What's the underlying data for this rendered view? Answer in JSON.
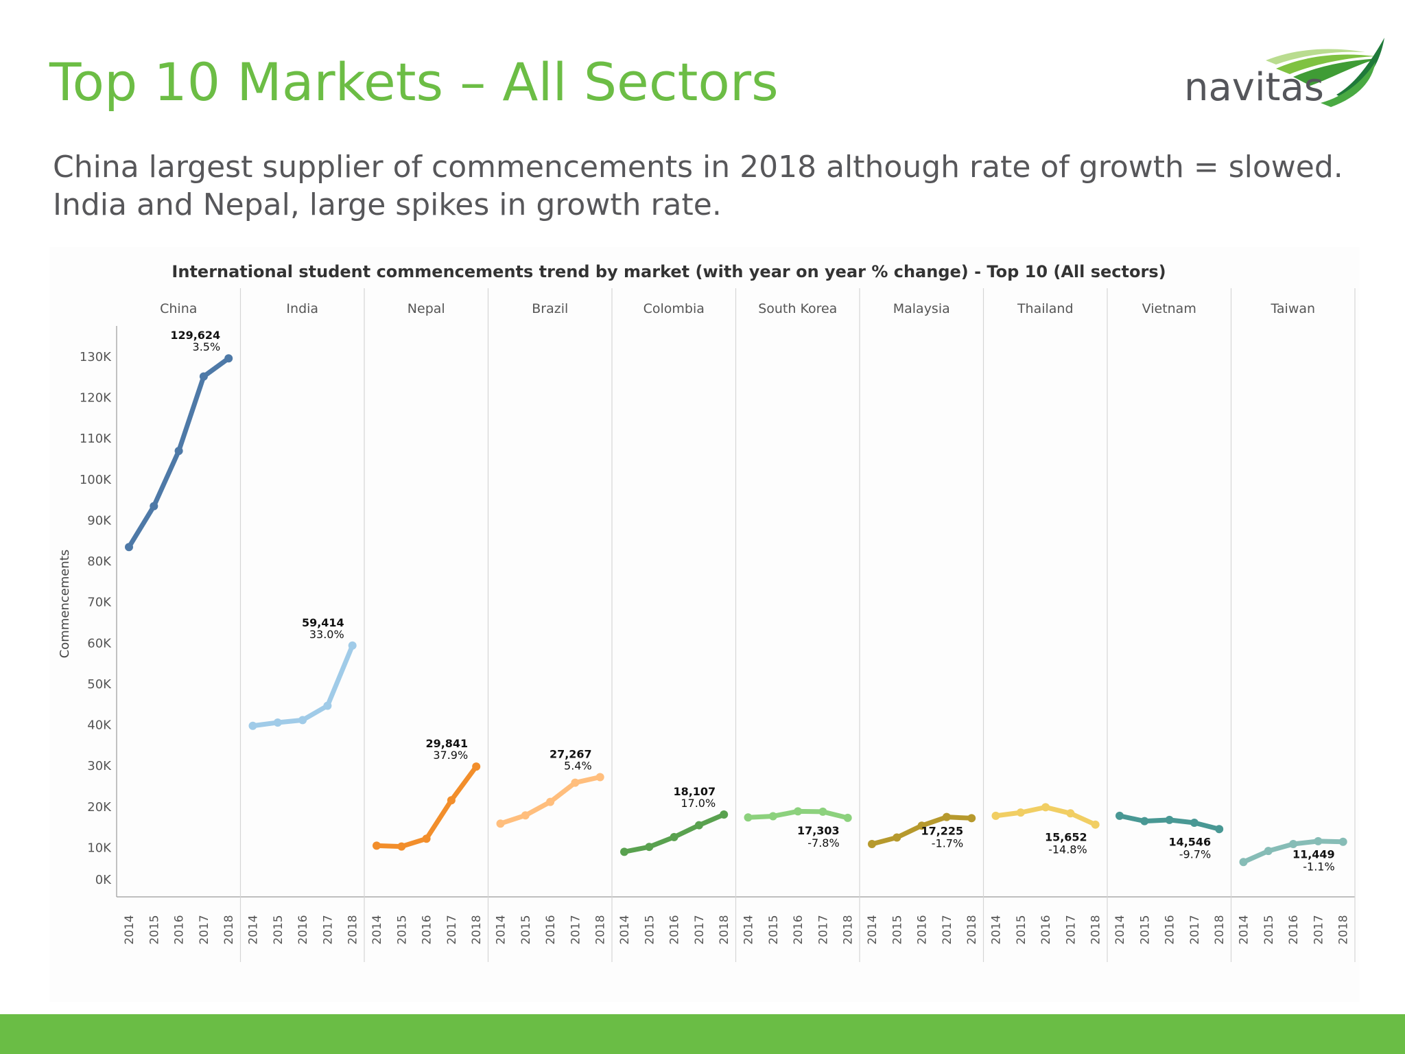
{
  "slide": {
    "title": "Top 10 Markets – All Sectors",
    "subtitle": "China largest supplier of commencements in 2018 although rate of growth = slowed. India and Nepal, large spikes in growth rate.",
    "logo_text": "navitas",
    "footer_color": "#6abd45",
    "title_color": "#6cbd45"
  },
  "chart_data": {
    "type": "line",
    "title": "International student commencements trend by market (with year on year % change) - Top 10 (All sectors)",
    "ylabel": "Commencements",
    "xlabel": "",
    "ylim": [
      0,
      135000
    ],
    "yticks": [
      0,
      10000,
      20000,
      30000,
      40000,
      50000,
      60000,
      70000,
      80000,
      90000,
      100000,
      110000,
      120000,
      130000
    ],
    "ytick_labels": [
      "0K",
      "10K",
      "20K",
      "30K",
      "40K",
      "50K",
      "60K",
      "70K",
      "80K",
      "90K",
      "100K",
      "110K",
      "120K",
      "130K"
    ],
    "x": [
      "2014",
      "2015",
      "2016",
      "2017",
      "2018"
    ],
    "grid": false,
    "series": [
      {
        "name": "China",
        "color": "#4e79a7",
        "values": [
          83500,
          93500,
          107000,
          125200,
          129624
        ],
        "last_value_label": "129,624",
        "change_label": "3.5%",
        "label_position": "above"
      },
      {
        "name": "India",
        "color": "#a0cbe8",
        "values": [
          39800,
          40600,
          41200,
          44700,
          59414
        ],
        "last_value_label": "59,414",
        "change_label": "33.0%",
        "label_position": "above"
      },
      {
        "name": "Nepal",
        "color": "#f28e2b",
        "values": [
          10500,
          10300,
          12200,
          21600,
          29841
        ],
        "last_value_label": "29,841",
        "change_label": "37.9%",
        "label_position": "above"
      },
      {
        "name": "Brazil",
        "color": "#ffbe7d",
        "values": [
          15900,
          17900,
          21200,
          25900,
          27267
        ],
        "last_value_label": "27,267",
        "change_label": "5.4%",
        "label_position": "above"
      },
      {
        "name": "Colombia",
        "color": "#59a14f",
        "values": [
          9000,
          10200,
          12600,
          15500,
          18107
        ],
        "last_value_label": "18,107",
        "change_label": "17.0%",
        "label_position": "above"
      },
      {
        "name": "South Korea",
        "color": "#8cd17d",
        "values": [
          17400,
          17700,
          18900,
          18800,
          17303
        ],
        "last_value_label": "17,303",
        "change_label": "-7.8%",
        "label_position": "below"
      },
      {
        "name": "Malaysia",
        "color": "#b6992d",
        "values": [
          10900,
          12500,
          15400,
          17500,
          17225
        ],
        "last_value_label": "17,225",
        "change_label": "-1.7%",
        "label_position": "below"
      },
      {
        "name": "Thailand",
        "color": "#f1ce63",
        "values": [
          17800,
          18600,
          19900,
          18400,
          15652
        ],
        "last_value_label": "15,652",
        "change_label": "-14.8%",
        "label_position": "below"
      },
      {
        "name": "Vietnam",
        "color": "#499894",
        "values": [
          17800,
          16500,
          16800,
          16100,
          14546
        ],
        "last_value_label": "14,546",
        "change_label": "-9.7%",
        "label_position": "below"
      },
      {
        "name": "Taiwan",
        "color": "#86bcb6",
        "values": [
          6500,
          9200,
          10900,
          11600,
          11449
        ],
        "last_value_label": "11,449",
        "change_label": "-1.1%",
        "label_position": "below"
      }
    ]
  }
}
